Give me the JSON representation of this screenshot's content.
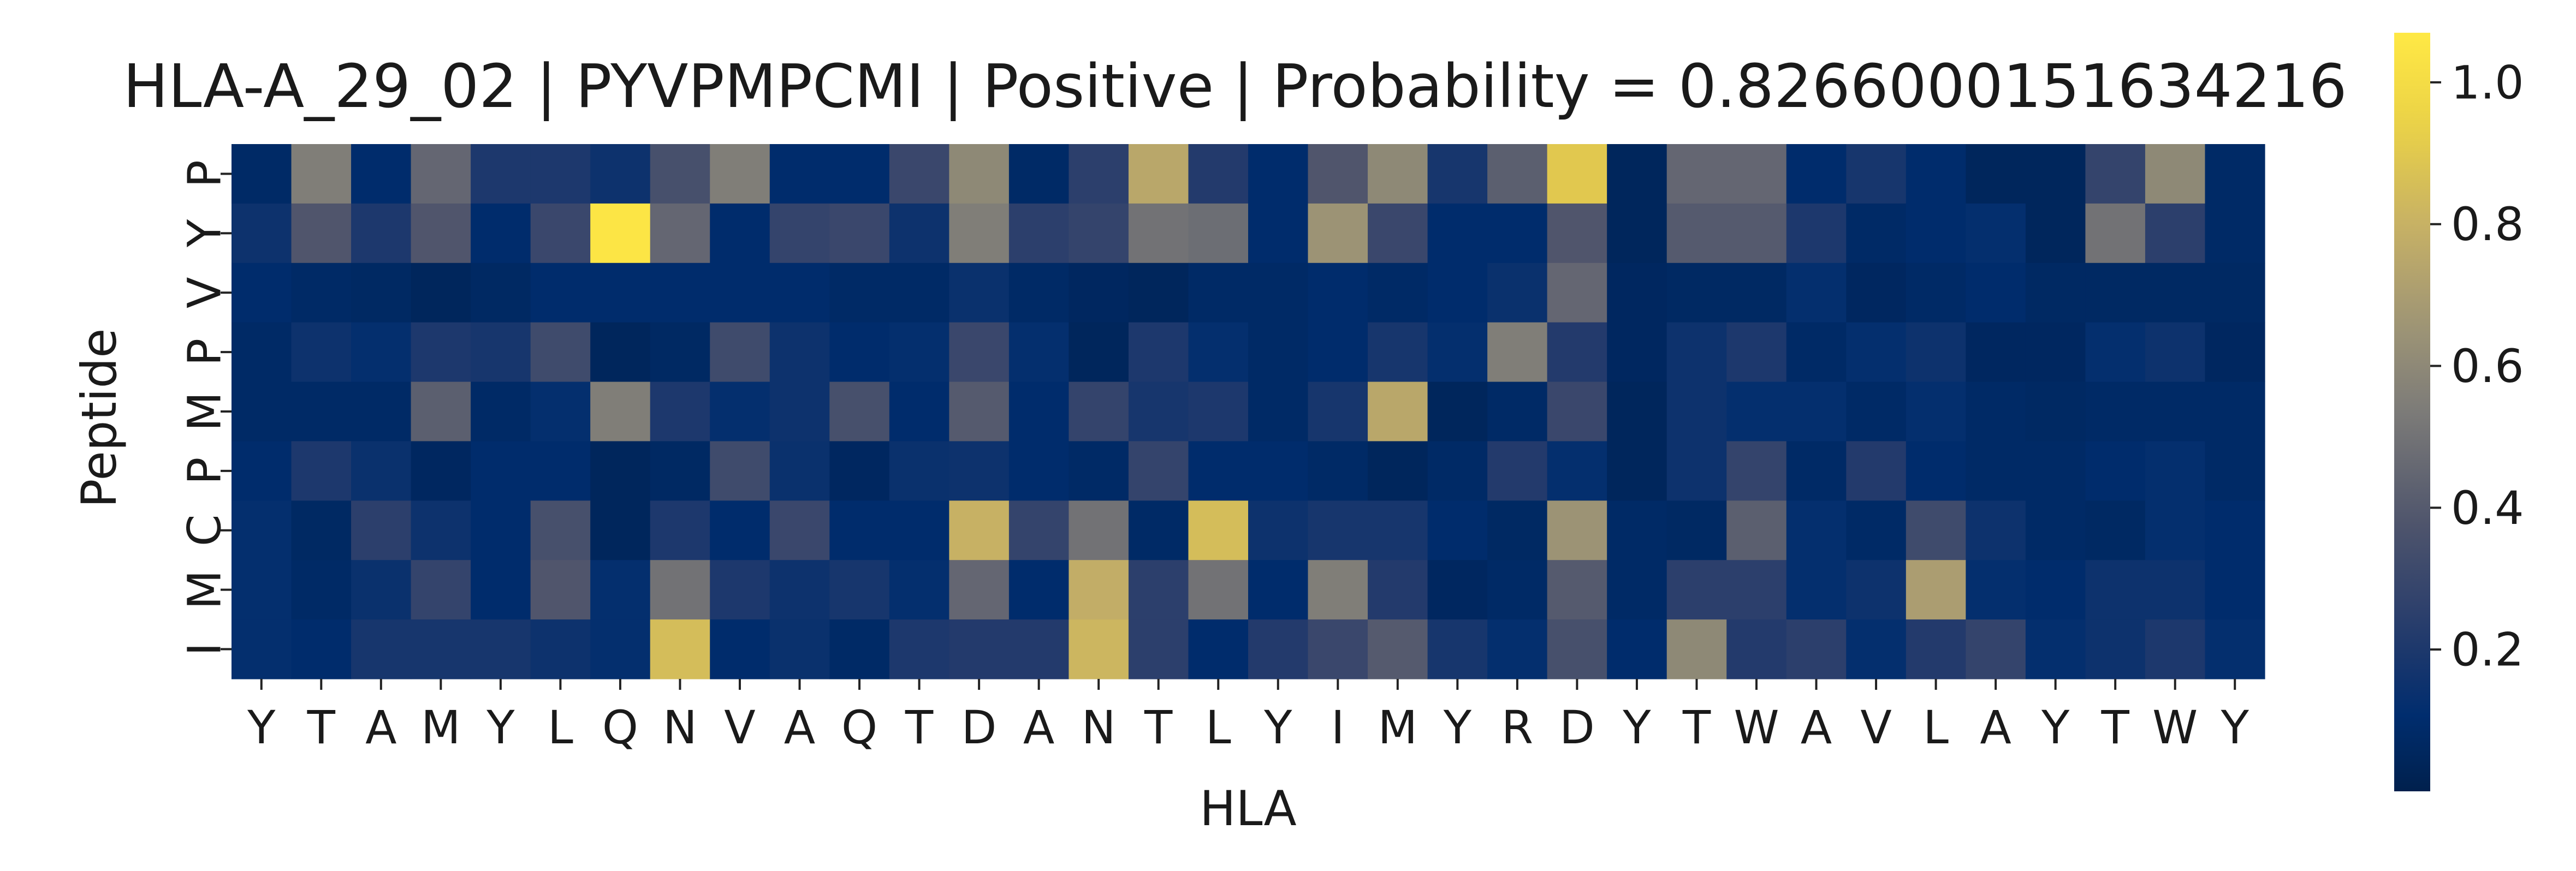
{
  "chart_data": {
    "type": "heatmap",
    "title": "HLA-A_29_02 | PYVPMPCMI | Positive | Probability = 0.8266000151634216",
    "xlabel": "HLA",
    "ylabel": "Peptide",
    "x_categories": [
      "Y",
      "T",
      "A",
      "M",
      "Y",
      "L",
      "Q",
      "N",
      "V",
      "A",
      "Q",
      "T",
      "D",
      "A",
      "N",
      "T",
      "L",
      "Y",
      "I",
      "M",
      "Y",
      "R",
      "D",
      "Y",
      "T",
      "W",
      "A",
      "V",
      "L",
      "A",
      "Y",
      "T",
      "W",
      "Y"
    ],
    "y_categories": [
      "P",
      "Y",
      "V",
      "P",
      "M",
      "P",
      "C",
      "M",
      "I"
    ],
    "values": [
      [
        0.08,
        0.55,
        0.1,
        0.45,
        0.2,
        0.2,
        0.15,
        0.35,
        0.55,
        0.1,
        0.1,
        0.3,
        0.6,
        0.08,
        0.25,
        0.75,
        0.22,
        0.1,
        0.38,
        0.6,
        0.18,
        0.42,
        0.9,
        0.05,
        0.45,
        0.45,
        0.1,
        0.18,
        0.1,
        0.05,
        0.05,
        0.28,
        0.6,
        0.08
      ],
      [
        0.15,
        0.38,
        0.2,
        0.38,
        0.1,
        0.3,
        1.05,
        0.45,
        0.1,
        0.28,
        0.3,
        0.15,
        0.55,
        0.25,
        0.28,
        0.5,
        0.48,
        0.1,
        0.65,
        0.3,
        0.1,
        0.1,
        0.38,
        0.05,
        0.4,
        0.4,
        0.2,
        0.08,
        0.1,
        0.12,
        0.05,
        0.5,
        0.25,
        0.08
      ],
      [
        0.1,
        0.08,
        0.07,
        0.05,
        0.07,
        0.1,
        0.1,
        0.1,
        0.1,
        0.1,
        0.08,
        0.08,
        0.14,
        0.08,
        0.06,
        0.05,
        0.08,
        0.08,
        0.1,
        0.08,
        0.1,
        0.14,
        0.45,
        0.06,
        0.07,
        0.07,
        0.12,
        0.06,
        0.08,
        0.1,
        0.07,
        0.07,
        0.07,
        0.07
      ],
      [
        0.08,
        0.15,
        0.12,
        0.2,
        0.18,
        0.32,
        0.05,
        0.07,
        0.32,
        0.15,
        0.1,
        0.12,
        0.3,
        0.12,
        0.05,
        0.2,
        0.12,
        0.08,
        0.1,
        0.18,
        0.12,
        0.55,
        0.22,
        0.06,
        0.15,
        0.2,
        0.08,
        0.12,
        0.15,
        0.06,
        0.06,
        0.12,
        0.15,
        0.06
      ],
      [
        0.08,
        0.08,
        0.08,
        0.42,
        0.08,
        0.12,
        0.55,
        0.2,
        0.12,
        0.15,
        0.35,
        0.1,
        0.4,
        0.1,
        0.28,
        0.18,
        0.2,
        0.08,
        0.18,
        0.75,
        0.05,
        0.08,
        0.3,
        0.05,
        0.15,
        0.12,
        0.12,
        0.08,
        0.12,
        0.08,
        0.07,
        0.08,
        0.08,
        0.08
      ],
      [
        0.1,
        0.2,
        0.14,
        0.06,
        0.1,
        0.1,
        0.05,
        0.07,
        0.32,
        0.14,
        0.06,
        0.14,
        0.15,
        0.1,
        0.08,
        0.28,
        0.1,
        0.1,
        0.08,
        0.05,
        0.08,
        0.22,
        0.12,
        0.05,
        0.15,
        0.28,
        0.08,
        0.22,
        0.1,
        0.08,
        0.08,
        0.1,
        0.12,
        0.08
      ],
      [
        0.12,
        0.07,
        0.25,
        0.15,
        0.1,
        0.35,
        0.05,
        0.2,
        0.1,
        0.3,
        0.1,
        0.1,
        0.8,
        0.28,
        0.5,
        0.08,
        0.85,
        0.15,
        0.18,
        0.18,
        0.1,
        0.07,
        0.65,
        0.08,
        0.07,
        0.42,
        0.12,
        0.08,
        0.32,
        0.15,
        0.08,
        0.07,
        0.12,
        0.1
      ],
      [
        0.12,
        0.08,
        0.14,
        0.28,
        0.1,
        0.38,
        0.12,
        0.5,
        0.2,
        0.15,
        0.18,
        0.12,
        0.45,
        0.1,
        0.78,
        0.25,
        0.5,
        0.1,
        0.55,
        0.22,
        0.06,
        0.08,
        0.4,
        0.08,
        0.25,
        0.25,
        0.12,
        0.15,
        0.7,
        0.12,
        0.1,
        0.15,
        0.15,
        0.1
      ],
      [
        0.12,
        0.1,
        0.18,
        0.18,
        0.18,
        0.15,
        0.12,
        0.85,
        0.1,
        0.14,
        0.08,
        0.2,
        0.22,
        0.22,
        0.82,
        0.25,
        0.1,
        0.22,
        0.3,
        0.4,
        0.18,
        0.12,
        0.35,
        0.1,
        0.6,
        0.22,
        0.25,
        0.12,
        0.22,
        0.28,
        0.12,
        0.15,
        0.2,
        0.12
      ]
    ],
    "colorbar": {
      "colormap": "cividis",
      "vmin": 0.0,
      "vmax": 1.07,
      "ticks": [
        "0.2",
        "0.4",
        "0.6",
        "0.8",
        "1.0"
      ]
    }
  }
}
